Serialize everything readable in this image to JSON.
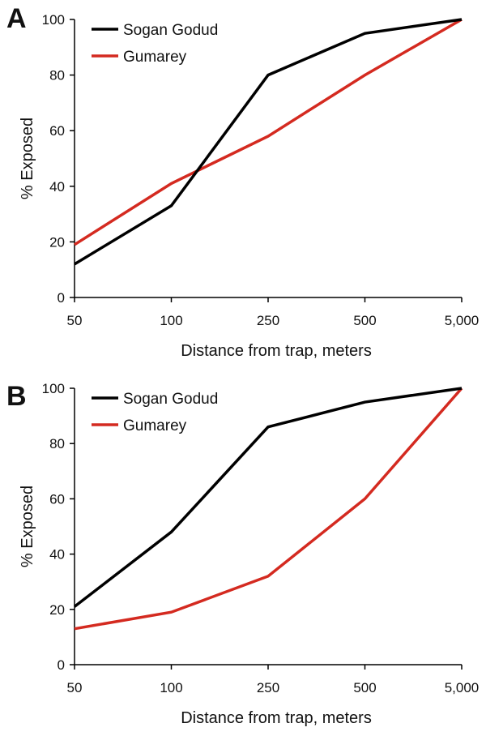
{
  "chart_data": [
    {
      "panel": "A",
      "type": "line",
      "xlabel": "Distance from trap, meters",
      "ylabel": "% Exposed",
      "categories": [
        "50",
        "100",
        "250",
        "500",
        "5,000"
      ],
      "yticks": [
        "0",
        "20",
        "40",
        "60",
        "80",
        "100"
      ],
      "ylim": [
        0,
        100
      ],
      "grid": false,
      "legend": "top-left",
      "series": [
        {
          "name": "Sogan Godud",
          "color": "#000000",
          "values": [
            12,
            33,
            80,
            95,
            100
          ]
        },
        {
          "name": "Gumarey",
          "color": "#d42a20",
          "values": [
            19,
            41,
            58,
            80,
            100
          ]
        }
      ]
    },
    {
      "panel": "B",
      "type": "line",
      "xlabel": "Distance from trap, meters",
      "ylabel": "% Exposed",
      "categories": [
        "50",
        "100",
        "250",
        "500",
        "5,000"
      ],
      "yticks": [
        "0",
        "20",
        "40",
        "60",
        "80",
        "100"
      ],
      "ylim": [
        0,
        100
      ],
      "grid": false,
      "legend": "top-left",
      "series": [
        {
          "name": "Sogan Godud",
          "color": "#000000",
          "values": [
            21,
            48,
            86,
            95,
            100
          ]
        },
        {
          "name": "Gumarey",
          "color": "#d42a20",
          "values": [
            13,
            19,
            32,
            60,
            100
          ]
        }
      ]
    }
  ]
}
